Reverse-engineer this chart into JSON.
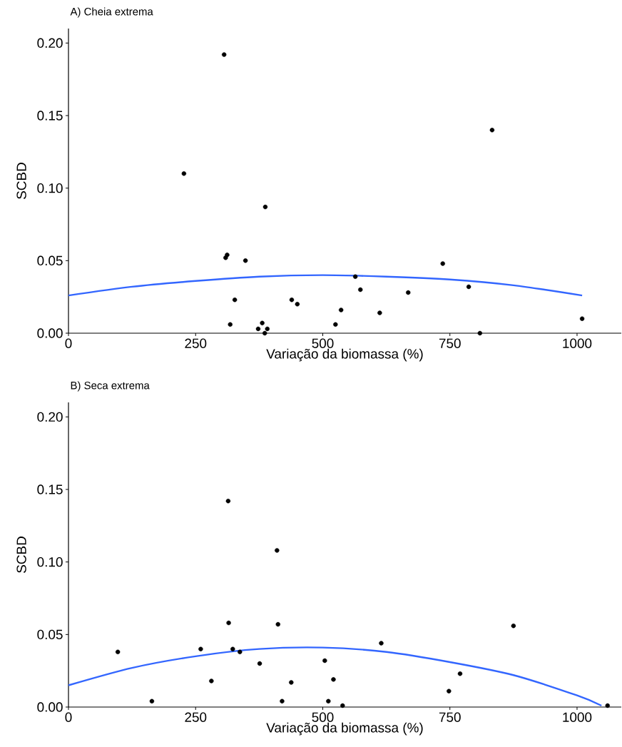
{
  "chart_data": [
    {
      "type": "scatter",
      "title": "A) Cheia extrema",
      "marker": "circle",
      "xlabel": "Variação da biomassa (%)",
      "ylabel": "SCBD",
      "xlim": [
        0,
        1087
      ],
      "ylim": [
        0,
        0.21
      ],
      "xticks": [
        0,
        250,
        500,
        750,
        1000
      ],
      "yticks": [
        {
          "value": 0,
          "label": "0.00"
        },
        {
          "value": 0.05,
          "label": "0.05"
        },
        {
          "value": 0.1,
          "label": "0.10"
        },
        {
          "value": 0.15,
          "label": "0.15"
        },
        {
          "value": 0.2,
          "label": "0.20"
        }
      ],
      "series": [
        {
          "type": "scatter",
          "color": "#000000",
          "x": [
            306,
            227,
            312,
            309,
            348,
            387,
            327,
            318,
            373,
            381,
            391,
            386,
            439,
            450,
            525,
            536,
            564,
            574,
            612,
            668,
            736,
            787,
            809,
            833,
            1010
          ],
          "values": [
            0.192,
            0.11,
            0.054,
            0.052,
            0.05,
            0.087,
            0.023,
            0.006,
            0.003,
            0.007,
            0.003,
            0.0,
            0.023,
            0.02,
            0.006,
            0.016,
            0.039,
            0.03,
            0.014,
            0.028,
            0.048,
            0.032,
            0.0,
            0.14,
            0.01
          ]
        },
        {
          "type": "line",
          "marker": "none",
          "color": "#3366ff",
          "x": [
            0,
            125,
            250,
            375,
            500,
            625,
            750,
            875,
            1010
          ],
          "values": [
            0.026,
            0.032,
            0.036,
            0.039,
            0.04,
            0.039,
            0.037,
            0.033,
            0.026
          ]
        }
      ]
    },
    {
      "type": "scatter",
      "title": "B) Seca extrema",
      "marker": "circle",
      "xlabel": "Variação da biomassa (%)",
      "ylabel": "SCBD",
      "xlim": [
        0,
        1087
      ],
      "ylim": [
        0,
        0.21
      ],
      "xticks": [
        0,
        250,
        500,
        750,
        1000
      ],
      "yticks": [
        {
          "value": 0,
          "label": "0.00"
        },
        {
          "value": 0.05,
          "label": "0.05"
        },
        {
          "value": 0.1,
          "label": "0.10"
        },
        {
          "value": 0.15,
          "label": "0.15"
        },
        {
          "value": 0.2,
          "label": "0.20"
        }
      ],
      "series": [
        {
          "type": "scatter",
          "color": "#000000",
          "x": [
            97,
            164,
            260,
            281,
            314,
            315,
            323,
            337,
            376,
            410,
            412,
            420,
            438,
            504,
            511,
            521,
            539,
            615,
            748,
            770,
            875,
            1060
          ],
          "values": [
            0.038,
            0.004,
            0.04,
            0.018,
            0.142,
            0.058,
            0.04,
            0.038,
            0.03,
            0.108,
            0.057,
            0.004,
            0.017,
            0.032,
            0.004,
            0.019,
            0.001,
            0.044,
            0.011,
            0.023,
            0.056,
            0.001
          ]
        },
        {
          "type": "line",
          "marker": "none",
          "color": "#3366ff",
          "x": [
            0,
            125,
            250,
            375,
            500,
            625,
            750,
            875,
            1000,
            1048
          ],
          "values": [
            0.015,
            0.027,
            0.035,
            0.04,
            0.041,
            0.038,
            0.031,
            0.022,
            0.008,
            0.001
          ]
        }
      ]
    }
  ]
}
